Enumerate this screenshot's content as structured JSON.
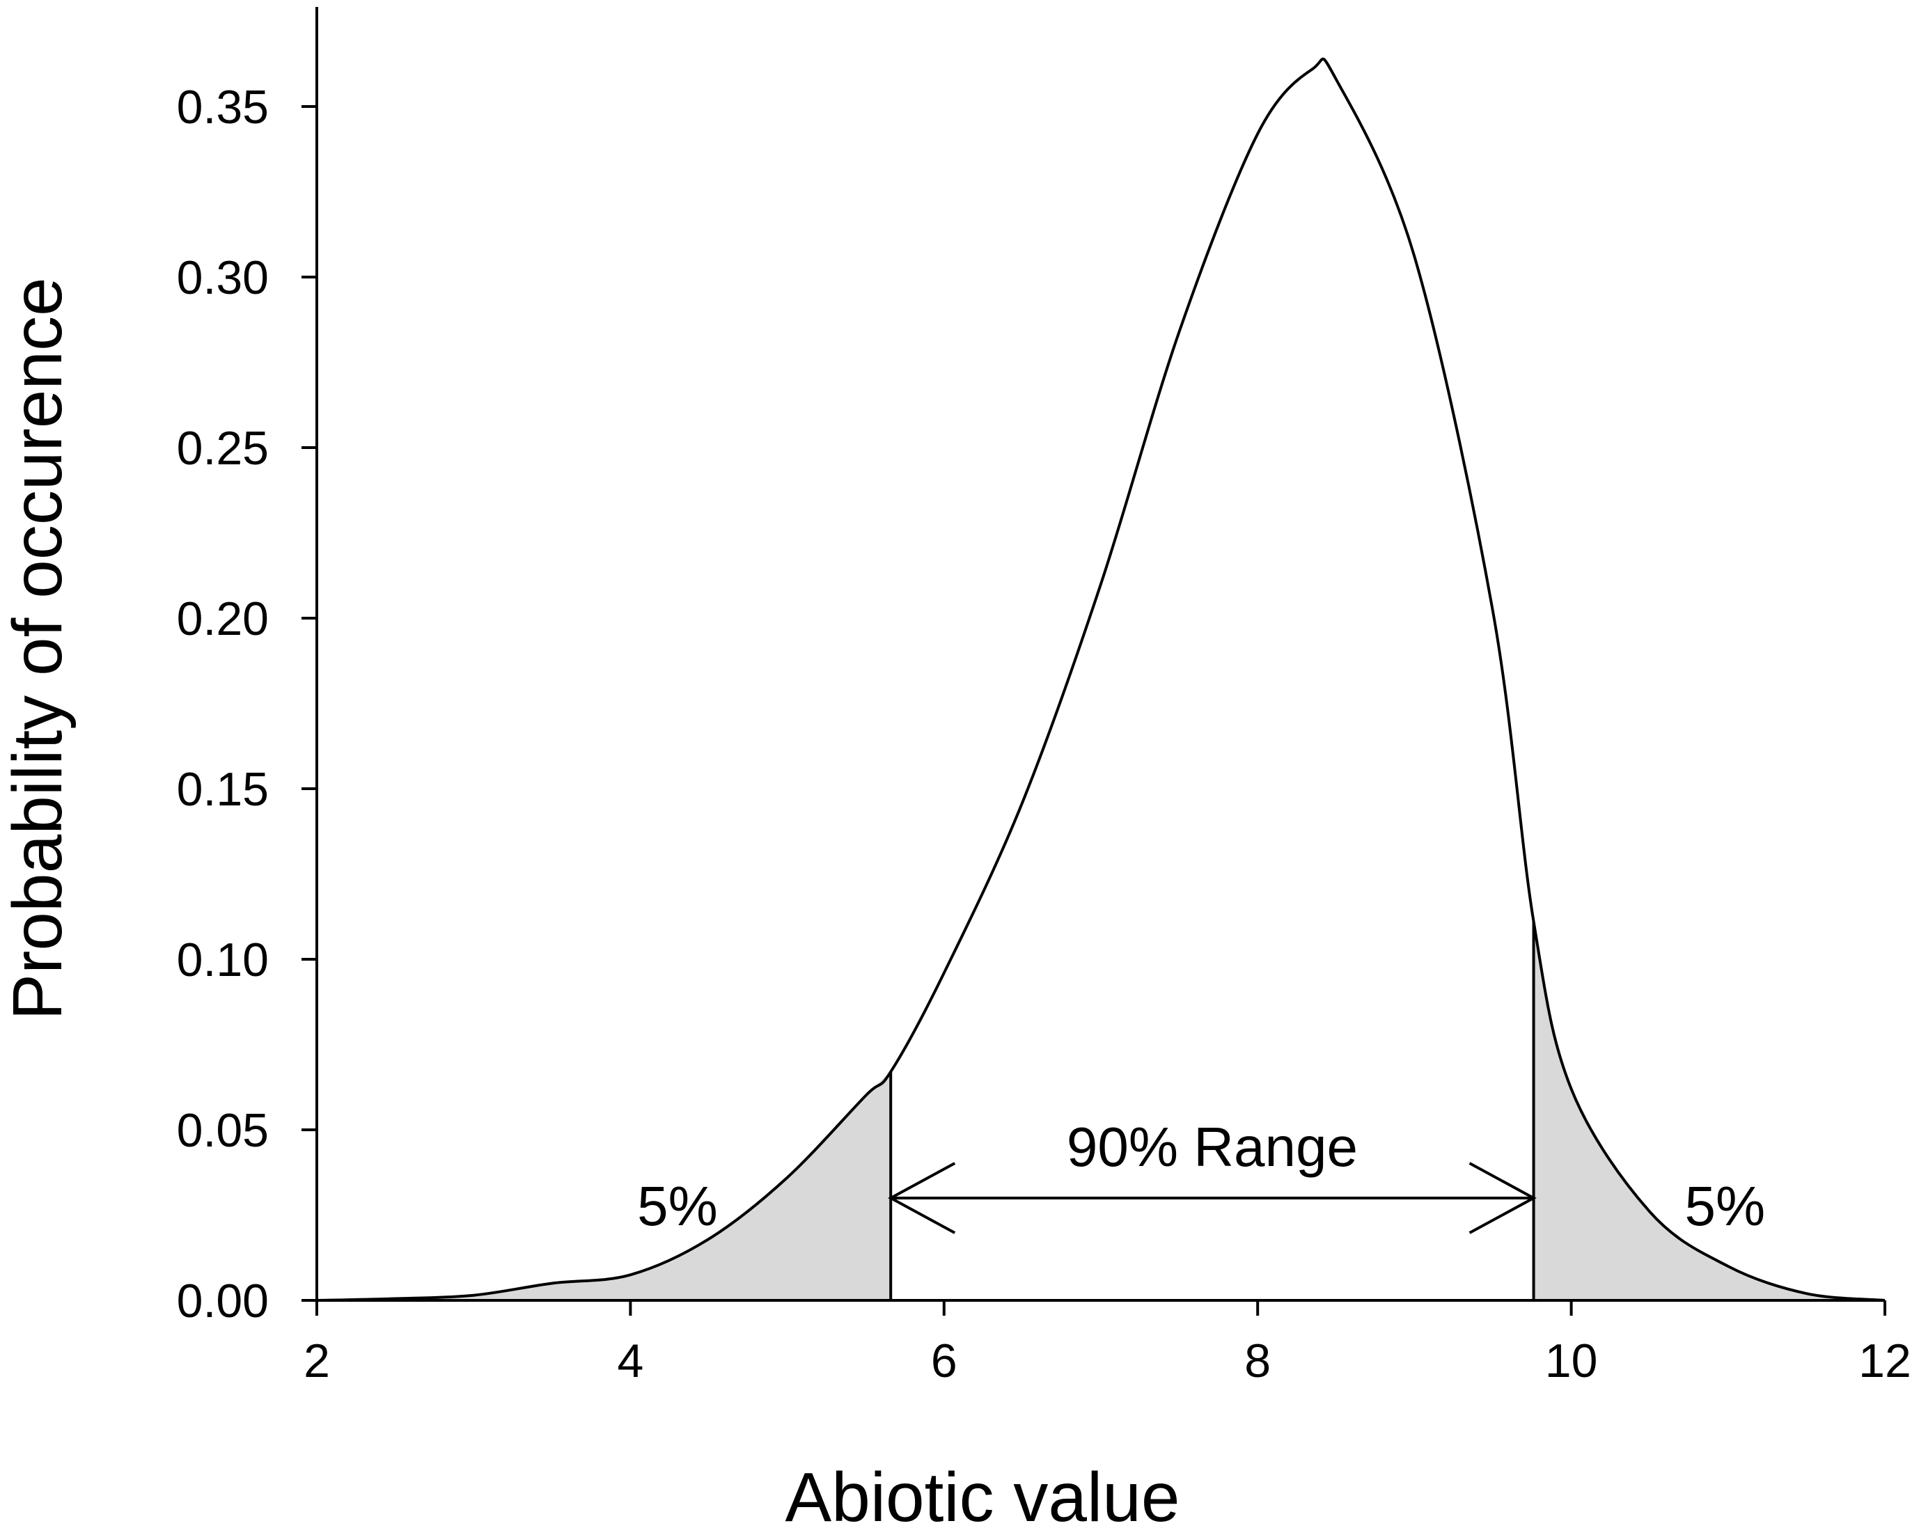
{
  "chart_data": {
    "type": "line",
    "title": "",
    "xlabel": "Abiotic value",
    "ylabel": "Probability of occurence",
    "xlim": [
      2,
      12
    ],
    "ylim": [
      0,
      0.37
    ],
    "x_ticks": [
      2,
      4,
      6,
      8,
      10,
      12
    ],
    "x_tick_labels": [
      "2",
      "4",
      "6",
      "8",
      "10",
      "12"
    ],
    "y_ticks": [
      0,
      0.05,
      0.1,
      0.15,
      0.2,
      0.25,
      0.3,
      0.35
    ],
    "y_tick_labels": [
      "0.00",
      "0.05",
      "0.10",
      "0.15",
      "0.20",
      "0.25",
      "0.30",
      "0.35"
    ],
    "grid": false,
    "series": [
      {
        "x": [
          2.0,
          2.5,
          3.0,
          3.5,
          4.0,
          4.5,
          5.0,
          5.5,
          5.66,
          6.0,
          6.5,
          7.0,
          7.5,
          8.0,
          8.35,
          8.5,
          9.0,
          9.5,
          9.76,
          10.0,
          10.5,
          11.0,
          11.5,
          12.0
        ],
        "y": [
          0.0,
          0.0005,
          0.0015,
          0.005,
          0.0075,
          0.018,
          0.036,
          0.06,
          0.067,
          0.096,
          0.146,
          0.21,
          0.284,
          0.342,
          0.361,
          0.358,
          0.306,
          0.202,
          0.111,
          0.062,
          0.026,
          0.01,
          0.002,
          0.0
        ]
      }
    ],
    "shaded_regions": [
      {
        "x_from": 2.0,
        "x_to": 5.66,
        "label": "5%",
        "fill": "#d9d9d9"
      },
      {
        "x_from": 9.76,
        "x_to": 12.0,
        "label": "5%",
        "fill": "#d9d9d9"
      }
    ],
    "range_annotation": {
      "x_from": 5.66,
      "x_to": 9.76,
      "y": 0.03,
      "label": "90% Range"
    },
    "colors": {
      "line": "#000000",
      "shade": "#d9d9d9",
      "background": "#ffffff"
    }
  }
}
